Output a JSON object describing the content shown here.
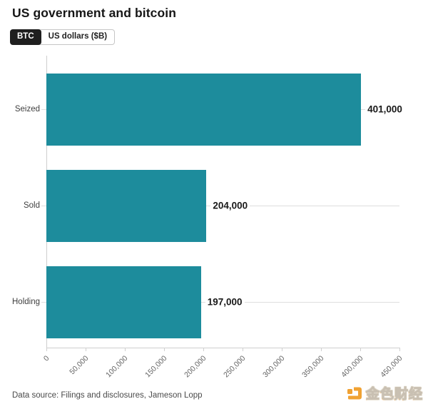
{
  "header": {
    "title": "US government and bitcoin"
  },
  "toggle": {
    "options": [
      {
        "label": "BTC",
        "selected": true
      },
      {
        "label": "US dollars ($B)",
        "selected": false
      }
    ]
  },
  "chart_data": {
    "type": "bar",
    "orientation": "horizontal",
    "title": "US government and bitcoin",
    "unit": "BTC",
    "categories": [
      "Seized",
      "Sold",
      "Holding"
    ],
    "values": [
      401000,
      204000,
      197000
    ],
    "value_labels": [
      "401,000",
      "204,000",
      "197,000"
    ],
    "xlim": [
      0,
      450000
    ],
    "x_ticks": [
      0,
      50000,
      100000,
      150000,
      200000,
      250000,
      300000,
      350000,
      400000,
      450000
    ],
    "x_tick_labels": [
      "0",
      "50,000",
      "100,000",
      "150,000",
      "200,000",
      "250,000",
      "300,000",
      "350,000",
      "400,000",
      "450,000"
    ],
    "bar_color": "#1d8c9c",
    "grid": true,
    "legend_position": "none"
  },
  "footer": {
    "source": "Data source: Filings and disclosures, Jameson Lopp",
    "brand": "金色财经"
  },
  "colors": {
    "bar_teal": "#1d8c9c",
    "axis_gray": "#cfcfcf",
    "grid_gray": "#dedede",
    "toggle_active_bg": "#1f1f1f",
    "brand_orange": "#f0a233"
  }
}
